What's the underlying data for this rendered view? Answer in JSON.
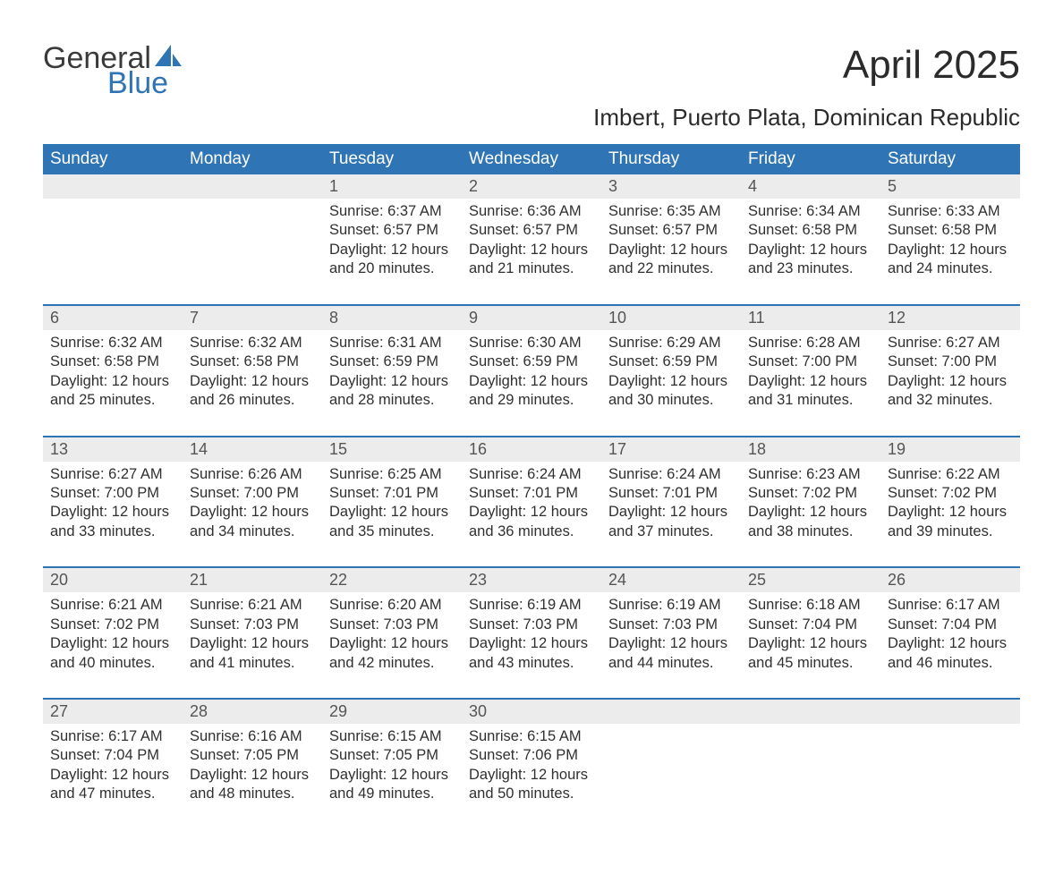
{
  "brand": {
    "line1": "General",
    "line2": "Blue",
    "sail_color": "#2f74b5"
  },
  "title": "April 2025",
  "subtitle": "Imbert, Puerto Plata, Dominican Republic",
  "columns": [
    "Sunday",
    "Monday",
    "Tuesday",
    "Wednesday",
    "Thursday",
    "Friday",
    "Saturday"
  ],
  "colors": {
    "header_bg": "#2f74b5",
    "header_text": "#ffffff",
    "daynum_bg": "#ececec",
    "daynum_text": "#555555",
    "body_text": "#303030",
    "separator": "#2f74b5",
    "background": "#ffffff"
  },
  "typography": {
    "title_fontsize": 44,
    "subtitle_fontsize": 26,
    "header_fontsize": 19,
    "daynum_fontsize": 18,
    "detail_fontsize": 16.5,
    "font_family": "Segoe UI / Arial"
  },
  "label_templates": {
    "sunrise_prefix": "Sunrise: ",
    "sunset_prefix": "Sunset: ",
    "daylight_prefix": "Daylight: ",
    "daylight_hours_word": " hours",
    "daylight_and_word": "and ",
    "daylight_minutes_word": " minutes."
  },
  "weeks": [
    [
      null,
      null,
      {
        "n": "1",
        "sunrise": "6:37 AM",
        "sunset": "6:57 PM",
        "dl_h": "12",
        "dl_m": "20"
      },
      {
        "n": "2",
        "sunrise": "6:36 AM",
        "sunset": "6:57 PM",
        "dl_h": "12",
        "dl_m": "21"
      },
      {
        "n": "3",
        "sunrise": "6:35 AM",
        "sunset": "6:57 PM",
        "dl_h": "12",
        "dl_m": "22"
      },
      {
        "n": "4",
        "sunrise": "6:34 AM",
        "sunset": "6:58 PM",
        "dl_h": "12",
        "dl_m": "23"
      },
      {
        "n": "5",
        "sunrise": "6:33 AM",
        "sunset": "6:58 PM",
        "dl_h": "12",
        "dl_m": "24"
      }
    ],
    [
      {
        "n": "6",
        "sunrise": "6:32 AM",
        "sunset": "6:58 PM",
        "dl_h": "12",
        "dl_m": "25"
      },
      {
        "n": "7",
        "sunrise": "6:32 AM",
        "sunset": "6:58 PM",
        "dl_h": "12",
        "dl_m": "26"
      },
      {
        "n": "8",
        "sunrise": "6:31 AM",
        "sunset": "6:59 PM",
        "dl_h": "12",
        "dl_m": "28"
      },
      {
        "n": "9",
        "sunrise": "6:30 AM",
        "sunset": "6:59 PM",
        "dl_h": "12",
        "dl_m": "29"
      },
      {
        "n": "10",
        "sunrise": "6:29 AM",
        "sunset": "6:59 PM",
        "dl_h": "12",
        "dl_m": "30"
      },
      {
        "n": "11",
        "sunrise": "6:28 AM",
        "sunset": "7:00 PM",
        "dl_h": "12",
        "dl_m": "31"
      },
      {
        "n": "12",
        "sunrise": "6:27 AM",
        "sunset": "7:00 PM",
        "dl_h": "12",
        "dl_m": "32"
      }
    ],
    [
      {
        "n": "13",
        "sunrise": "6:27 AM",
        "sunset": "7:00 PM",
        "dl_h": "12",
        "dl_m": "33"
      },
      {
        "n": "14",
        "sunrise": "6:26 AM",
        "sunset": "7:00 PM",
        "dl_h": "12",
        "dl_m": "34"
      },
      {
        "n": "15",
        "sunrise": "6:25 AM",
        "sunset": "7:01 PM",
        "dl_h": "12",
        "dl_m": "35"
      },
      {
        "n": "16",
        "sunrise": "6:24 AM",
        "sunset": "7:01 PM",
        "dl_h": "12",
        "dl_m": "36"
      },
      {
        "n": "17",
        "sunrise": "6:24 AM",
        "sunset": "7:01 PM",
        "dl_h": "12",
        "dl_m": "37"
      },
      {
        "n": "18",
        "sunrise": "6:23 AM",
        "sunset": "7:02 PM",
        "dl_h": "12",
        "dl_m": "38"
      },
      {
        "n": "19",
        "sunrise": "6:22 AM",
        "sunset": "7:02 PM",
        "dl_h": "12",
        "dl_m": "39"
      }
    ],
    [
      {
        "n": "20",
        "sunrise": "6:21 AM",
        "sunset": "7:02 PM",
        "dl_h": "12",
        "dl_m": "40"
      },
      {
        "n": "21",
        "sunrise": "6:21 AM",
        "sunset": "7:03 PM",
        "dl_h": "12",
        "dl_m": "41"
      },
      {
        "n": "22",
        "sunrise": "6:20 AM",
        "sunset": "7:03 PM",
        "dl_h": "12",
        "dl_m": "42"
      },
      {
        "n": "23",
        "sunrise": "6:19 AM",
        "sunset": "7:03 PM",
        "dl_h": "12",
        "dl_m": "43"
      },
      {
        "n": "24",
        "sunrise": "6:19 AM",
        "sunset": "7:03 PM",
        "dl_h": "12",
        "dl_m": "44"
      },
      {
        "n": "25",
        "sunrise": "6:18 AM",
        "sunset": "7:04 PM",
        "dl_h": "12",
        "dl_m": "45"
      },
      {
        "n": "26",
        "sunrise": "6:17 AM",
        "sunset": "7:04 PM",
        "dl_h": "12",
        "dl_m": "46"
      }
    ],
    [
      {
        "n": "27",
        "sunrise": "6:17 AM",
        "sunset": "7:04 PM",
        "dl_h": "12",
        "dl_m": "47"
      },
      {
        "n": "28",
        "sunrise": "6:16 AM",
        "sunset": "7:05 PM",
        "dl_h": "12",
        "dl_m": "48"
      },
      {
        "n": "29",
        "sunrise": "6:15 AM",
        "sunset": "7:05 PM",
        "dl_h": "12",
        "dl_m": "49"
      },
      {
        "n": "30",
        "sunrise": "6:15 AM",
        "sunset": "7:06 PM",
        "dl_h": "12",
        "dl_m": "50"
      },
      null,
      null,
      null
    ]
  ]
}
